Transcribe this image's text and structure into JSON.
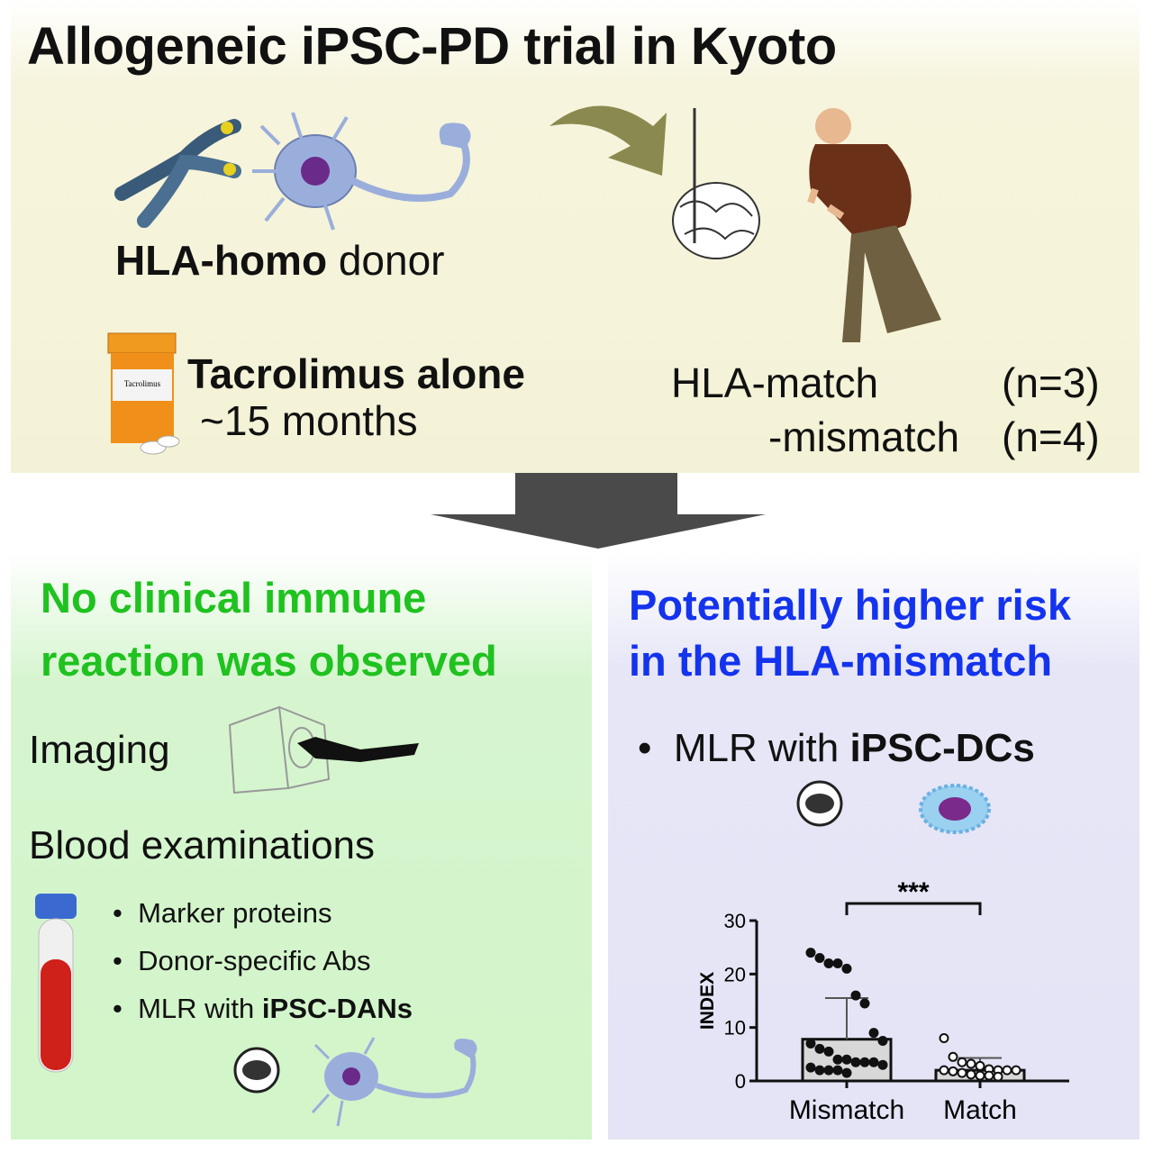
{
  "title": "Allogeneic iPSC-PD trial in Kyoto",
  "top": {
    "donor_bold": "HLA-homo",
    "donor_rest": " donor",
    "drug_bold": "Tacrolimus alone",
    "drug_duration": "~15 months",
    "bottle_label": "Tacrolimus",
    "match_label": "HLA-match",
    "match_n": "(n=3)",
    "mismatch_label": "-mismatch",
    "mismatch_n": "(n=4)"
  },
  "left": {
    "heading_line1": "No clinical immune",
    "heading_line2": "reaction was observed",
    "imaging": "Imaging",
    "blood": "Blood examinations",
    "bullets": [
      "Marker proteins",
      "Donor-specific Abs"
    ],
    "bullet3_prefix": "MLR with ",
    "bullet3_bold": "iPSC-DANs"
  },
  "right": {
    "heading_line1": "Potentially higher risk",
    "heading_line2": "in the HLA-mismatch",
    "bullet_prefix": "MLR with ",
    "bullet_bold": "iPSC-DCs"
  },
  "colors": {
    "green_heading": "#1fc21f",
    "blue_heading": "#1433ee",
    "arrow": "#4a4a4a"
  },
  "chart_data": {
    "type": "bar",
    "ylabel": "INDEX",
    "categories": [
      "Mismatch",
      "Match"
    ],
    "ylim": [
      0,
      30
    ],
    "yticks": [
      0,
      10,
      20,
      30
    ],
    "series": [
      {
        "values": [
          7.8,
          2.0
        ],
        "error_upper": [
          15.5,
          4.3
        ]
      }
    ],
    "points": {
      "Mismatch": [
        24,
        23,
        22,
        22,
        21,
        16,
        14.5,
        9,
        7.5,
        7,
        6,
        5.5,
        4,
        4,
        3.5,
        3.5,
        3.5,
        3,
        2.5,
        2,
        2,
        2,
        1.5
      ],
      "Match": [
        8,
        4.5,
        3.5,
        3.2,
        2.8,
        2.2,
        2,
        2,
        2,
        2,
        1.8,
        1.5,
        1.2,
        1,
        1,
        0.8
      ]
    },
    "significance": "***",
    "grid": false
  }
}
